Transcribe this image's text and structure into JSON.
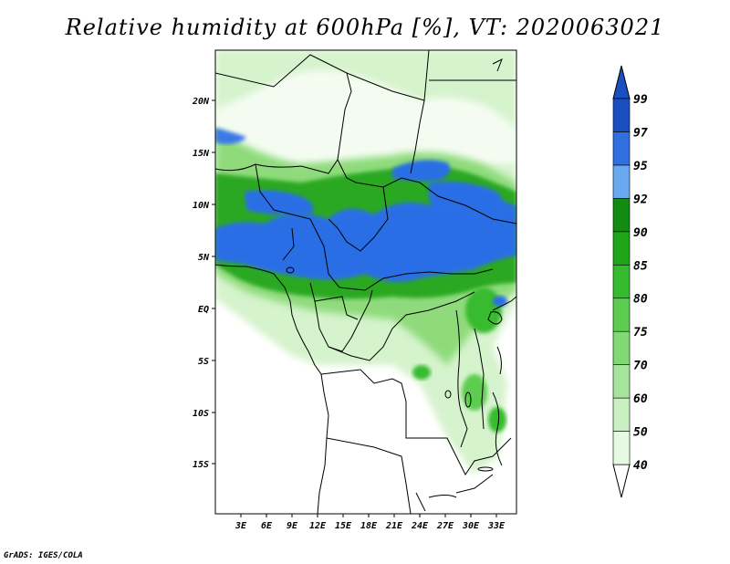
{
  "title": "Relative humidity at 600hPa [%], VT: 2020063021",
  "credit": "GrADS: IGES/COLA",
  "lat_labels": [
    "20N",
    "15N",
    "10N",
    "5N",
    "EQ",
    "5S",
    "10S",
    "15S"
  ],
  "lon_labels": [
    "3E",
    "6E",
    "9E",
    "12E",
    "15E",
    "18E",
    "21E",
    "24E",
    "27E",
    "30E",
    "33E"
  ],
  "colorbar": {
    "levels": [
      "40",
      "50",
      "60",
      "70",
      "75",
      "80",
      "85",
      "90",
      "92",
      "95",
      "97",
      "99"
    ],
    "colors": [
      "#ffffff",
      "#e6f9e1",
      "#c8f0c0",
      "#a5e49a",
      "#82d974",
      "#5dcd4f",
      "#37bb2e",
      "#1fa519",
      "#138a10",
      "#6aa8f0",
      "#2f6fe0",
      "#1a4fc0"
    ]
  },
  "humidity_colors": {
    "low": "#ffffff",
    "light_green": "#d2f2c9",
    "mid_green": "#7fd56b",
    "dark_green": "#1d9a17",
    "blue": "#2c6ee6",
    "dark_blue": "#1c4fc8"
  }
}
